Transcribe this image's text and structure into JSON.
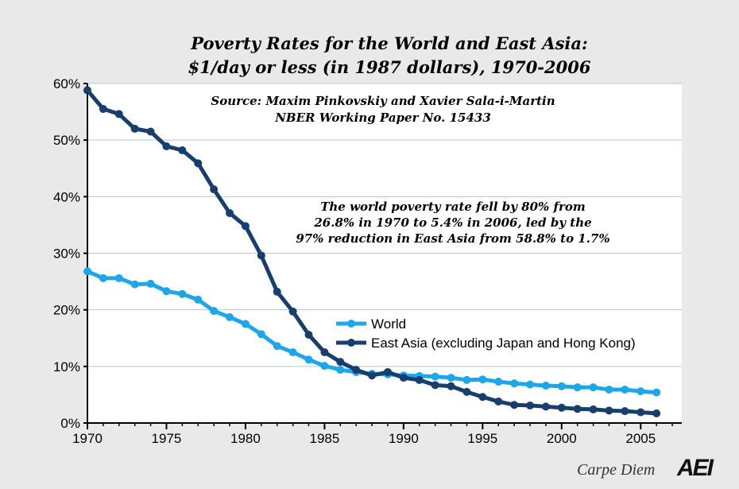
{
  "chart_data": {
    "type": "line",
    "title": [
      "Poverty Rates for the World and East Asia:",
      "$1/day or less  (in 1987 dollars), 1970-2006"
    ],
    "source": [
      "Source: Maxim Pinkovskiy and Xavier Sala-i-Martin",
      "NBER Working Paper No. 15433"
    ],
    "annotation": [
      "The world poverty rate fell by 80% from",
      "26.8% in 1970 to 5.4% in 2006, led by the",
      "97% reduction in East Asia from 58.8% to 1.7%"
    ],
    "xlabel": "",
    "ylabel": "",
    "xlim": [
      1970,
      2007.6
    ],
    "ylim": [
      0,
      60
    ],
    "xticks": [
      1970,
      1975,
      1980,
      1985,
      1990,
      1995,
      2000,
      2005
    ],
    "yticks": [
      0,
      10,
      20,
      30,
      40,
      50,
      60
    ],
    "ytick_labels": [
      "0%",
      "10%",
      "20%",
      "30%",
      "40%",
      "50%",
      "60%"
    ],
    "grid": "horizontal",
    "legend_placement": "center-right",
    "x": [
      1970,
      1971,
      1972,
      1973,
      1974,
      1975,
      1976,
      1977,
      1978,
      1979,
      1980,
      1981,
      1982,
      1983,
      1984,
      1985,
      1986,
      1987,
      1988,
      1989,
      1990,
      1991,
      1992,
      1993,
      1994,
      1995,
      1996,
      1997,
      1998,
      1999,
      2000,
      2001,
      2002,
      2003,
      2004,
      2005,
      2006
    ],
    "series": [
      {
        "name": "World",
        "color": "#1ea6ea",
        "values": [
          26.8,
          25.6,
          25.6,
          24.5,
          24.6,
          23.3,
          22.8,
          21.8,
          19.8,
          18.7,
          17.5,
          15.7,
          13.6,
          12.5,
          11.2,
          10.1,
          9.4,
          9.0,
          8.7,
          8.6,
          8.4,
          8.3,
          8.2,
          8.0,
          7.6,
          7.7,
          7.3,
          7.0,
          6.8,
          6.6,
          6.5,
          6.3,
          6.3,
          5.9,
          5.9,
          5.6,
          5.4
        ]
      },
      {
        "name": "East Asia (excluding Japan and Hong Kong)",
        "color": "#173e6c",
        "values": [
          58.8,
          55.5,
          54.6,
          52.0,
          51.5,
          48.9,
          48.2,
          45.9,
          41.3,
          37.1,
          34.8,
          29.6,
          23.2,
          19.7,
          15.6,
          12.5,
          10.8,
          9.4,
          8.4,
          9.0,
          8.0,
          7.6,
          6.7,
          6.5,
          5.5,
          4.6,
          3.8,
          3.2,
          3.1,
          2.9,
          2.7,
          2.5,
          2.4,
          2.2,
          2.1,
          1.9,
          1.7
        ]
      }
    ]
  },
  "footer": {
    "blog": "Carpe Diem",
    "logo": "AEI"
  }
}
